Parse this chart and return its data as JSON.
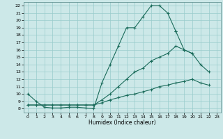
{
  "xlabel": "Humidex (Indice chaleur)",
  "bg_color": "#cce8e8",
  "grid_color": "#99cccc",
  "line_color": "#1a6b5a",
  "xlim": [
    -0.5,
    23.5
  ],
  "ylim": [
    7.5,
    22.5
  ],
  "yticks": [
    8,
    9,
    10,
    11,
    12,
    13,
    14,
    15,
    16,
    17,
    18,
    19,
    20,
    21,
    22
  ],
  "xticks": [
    0,
    1,
    2,
    3,
    4,
    5,
    6,
    7,
    8,
    9,
    10,
    11,
    12,
    13,
    14,
    15,
    16,
    17,
    18,
    19,
    20,
    21,
    22,
    23
  ],
  "curve1_x": [
    0,
    1,
    2,
    3,
    4,
    5,
    6,
    7,
    8,
    9,
    10,
    11,
    12,
    13,
    14,
    15,
    16,
    17,
    18
  ],
  "curve1_y": [
    10,
    9,
    8.2,
    8.1,
    8.1,
    8.2,
    8.2,
    8.1,
    8.0,
    11.5,
    14.0,
    16.5,
    19.0,
    19.0,
    20.5,
    22.0,
    22.0,
    21.0,
    18.5
  ],
  "curve2_x": [
    0,
    1,
    2,
    3,
    4,
    5,
    6,
    7,
    8,
    9,
    10,
    11,
    12,
    13,
    14,
    15,
    16,
    17,
    18,
    19,
    20
  ],
  "curve2_y": [
    8.5,
    8.5,
    8.5,
    8.5,
    8.5,
    8.5,
    8.5,
    8.5,
    8.5,
    9.2,
    10.0,
    11.0,
    12.0,
    13.0,
    13.5,
    14.5,
    15.0,
    15.5,
    16.5,
    16.0,
    15.5
  ],
  "curve3_x": [
    0,
    1,
    2,
    3,
    4,
    5,
    6,
    7,
    8,
    9,
    10,
    11,
    12,
    13,
    14,
    15,
    16,
    17,
    18,
    19,
    20,
    21,
    22
  ],
  "curve3_y": [
    8.5,
    8.5,
    8.5,
    8.5,
    8.5,
    8.5,
    8.5,
    8.5,
    8.5,
    8.8,
    9.2,
    9.5,
    9.8,
    10.0,
    10.3,
    10.6,
    11.0,
    11.2,
    11.5,
    11.7,
    12.0,
    11.5,
    11.2
  ],
  "curve4_x": [
    18,
    19,
    20,
    21,
    22
  ],
  "curve4_y": [
    18.5,
    16.0,
    15.5,
    14.0,
    13.0
  ]
}
